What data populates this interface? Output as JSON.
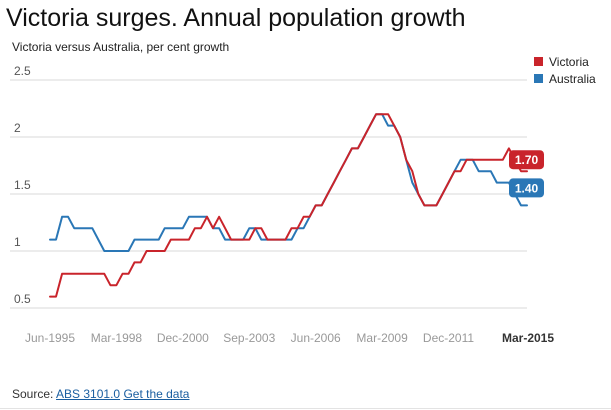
{
  "page": {
    "title": "Victoria surges. Annual population growth",
    "subtitle": "Victoria versus Australia, per cent growth",
    "source_label": "Source:",
    "source_link": "ABS 3101.0",
    "data_link": "Get the data"
  },
  "colors": {
    "victoria": "#c9242b",
    "australia": "#2a77b6",
    "grid": "#d9d9d9",
    "tick": "#888888"
  },
  "chart_data": {
    "type": "line",
    "title": "Victoria surges. Annual population growth",
    "subtitle": "Victoria versus Australia, per cent growth",
    "xlabel": "",
    "ylabel": "",
    "ylim": [
      0.4,
      2.6
    ],
    "yticks": [
      0.5,
      1,
      1.5,
      2,
      2.5
    ],
    "ytick_labels": [
      "0.5",
      "1",
      "1.5",
      "2",
      "2.5"
    ],
    "x_tick_labels": [
      {
        "label": "Jun-1995",
        "index": 0
      },
      {
        "label": "Mar-1998",
        "index": 11
      },
      {
        "label": "Dec-2000",
        "index": 22
      },
      {
        "label": "Sep-2003",
        "index": 33
      },
      {
        "label": "Jun-2006",
        "index": 44
      },
      {
        "label": "Mar-2009",
        "index": 55
      },
      {
        "label": "Dec-2011",
        "index": 66
      },
      {
        "label": "Mar-2015",
        "index": 79
      }
    ],
    "x_start": "Jun-1995",
    "x_end": "Mar-2015",
    "frequency": "quarterly",
    "series": [
      {
        "name": "Victoria",
        "color": "#c9242b",
        "end_label": "1.70",
        "values": [
          0.6,
          0.6,
          0.8,
          0.8,
          0.8,
          0.8,
          0.8,
          0.8,
          0.8,
          0.8,
          0.7,
          0.7,
          0.8,
          0.8,
          0.9,
          0.9,
          1.0,
          1.0,
          1.0,
          1.0,
          1.1,
          1.1,
          1.1,
          1.1,
          1.2,
          1.2,
          1.3,
          1.2,
          1.3,
          1.2,
          1.1,
          1.1,
          1.1,
          1.1,
          1.2,
          1.2,
          1.1,
          1.1,
          1.1,
          1.1,
          1.2,
          1.2,
          1.3,
          1.3,
          1.4,
          1.4,
          1.5,
          1.6,
          1.7,
          1.8,
          1.9,
          1.9,
          2.0,
          2.1,
          2.2,
          2.2,
          2.2,
          2.1,
          2.0,
          1.8,
          1.7,
          1.5,
          1.4,
          1.4,
          1.4,
          1.5,
          1.6,
          1.7,
          1.7,
          1.8,
          1.8,
          1.8,
          1.8,
          1.8,
          1.8,
          1.8,
          1.9,
          1.8,
          1.7,
          1.7
        ]
      },
      {
        "name": "Australia",
        "color": "#2a77b6",
        "end_label": "1.40",
        "values": [
          1.1,
          1.1,
          1.3,
          1.3,
          1.2,
          1.2,
          1.2,
          1.2,
          1.1,
          1.0,
          1.0,
          1.0,
          1.0,
          1.0,
          1.1,
          1.1,
          1.1,
          1.1,
          1.1,
          1.2,
          1.2,
          1.2,
          1.2,
          1.3,
          1.3,
          1.3,
          1.3,
          1.2,
          1.2,
          1.1,
          1.1,
          1.1,
          1.1,
          1.2,
          1.2,
          1.1,
          1.1,
          1.1,
          1.1,
          1.1,
          1.1,
          1.2,
          1.2,
          1.3,
          1.4,
          1.4,
          1.5,
          1.6,
          1.7,
          1.8,
          1.9,
          1.9,
          2.0,
          2.1,
          2.2,
          2.2,
          2.1,
          2.1,
          2.0,
          1.8,
          1.6,
          1.5,
          1.4,
          1.4,
          1.4,
          1.5,
          1.6,
          1.7,
          1.8,
          1.8,
          1.8,
          1.7,
          1.7,
          1.7,
          1.6,
          1.6,
          1.6,
          1.5,
          1.4,
          1.4
        ]
      }
    ]
  }
}
